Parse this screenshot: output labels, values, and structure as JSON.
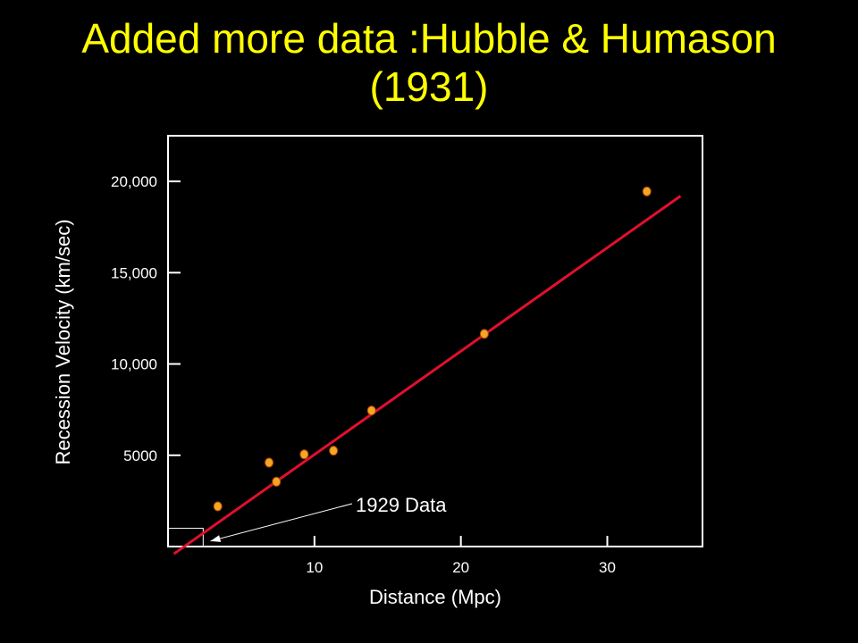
{
  "title": {
    "line1": "Added more data :Hubble & Humason",
    "line2": "(1931)"
  },
  "colors": {
    "background": "#000000",
    "title": "#FFFF00",
    "fit_line": "#E0102E",
    "points": "#F5A623",
    "point_outline": "#B34700",
    "axes": "#FFFFFF"
  },
  "chart_data": {
    "type": "scatter",
    "xlabel": "Distance (Mpc)",
    "ylabel": "Recession Velocity (km/sec)",
    "xlim": [
      0,
      36.5
    ],
    "ylim": [
      0,
      22500
    ],
    "x_ticks": [
      {
        "value": 10,
        "label": "10"
      },
      {
        "value": 20,
        "label": "20"
      },
      {
        "value": 30,
        "label": "30"
      }
    ],
    "y_ticks": [
      {
        "value": 5000,
        "label": "5000"
      },
      {
        "value": 10000,
        "label": "10,000"
      },
      {
        "value": 15000,
        "label": "15,000"
      },
      {
        "value": 20000,
        "label": "20,000"
      }
    ],
    "points": [
      {
        "x": 3.4,
        "y": 2200
      },
      {
        "x": 6.9,
        "y": 4600
      },
      {
        "x": 7.4,
        "y": 3550
      },
      {
        "x": 9.3,
        "y": 5050
      },
      {
        "x": 11.3,
        "y": 5250
      },
      {
        "x": 13.9,
        "y": 7450
      },
      {
        "x": 21.6,
        "y": 11650
      },
      {
        "x": 32.7,
        "y": 19450
      }
    ],
    "fit_line": {
      "x0": 0.4,
      "y0": -400,
      "x1": 35.0,
      "y1": 19200
    },
    "inset_box": {
      "x0": 0,
      "x1": 2.4,
      "y0": 0,
      "y1": 1000
    },
    "annotation": {
      "text": "1929 Data",
      "anchor": {
        "x": 2.9,
        "y": 300
      }
    },
    "grid": false
  }
}
